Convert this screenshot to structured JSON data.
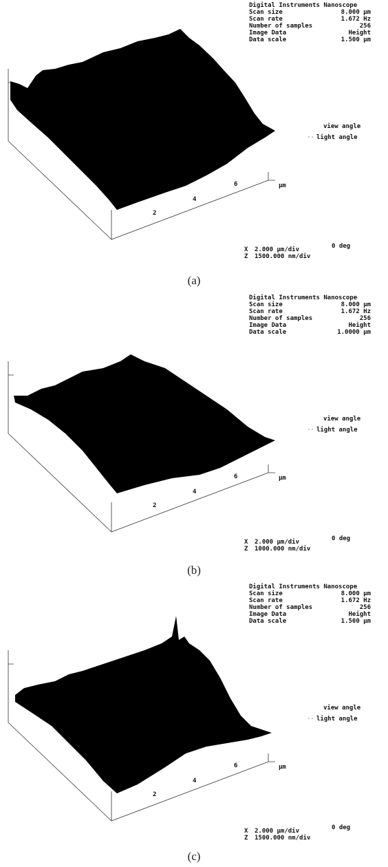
{
  "figure": {
    "panels": [
      {
        "header": {
          "title": "Digital Instruments Nanoscope",
          "rows": [
            [
              "Scan size",
              "8.000 µm"
            ],
            [
              "Scan rate",
              "1.672 Hz"
            ],
            [
              "Number of samples",
              "256"
            ],
            [
              "Image Data",
              "Height"
            ],
            [
              "Data scale",
              "1.500 µm"
            ]
          ]
        },
        "view_angle": "view angle",
        "light_angle": "light angle",
        "axis_ticks": [
          "2",
          "4",
          "6"
        ],
        "axis_unit": "µm",
        "footer": {
          "x_label": "X",
          "x_scale": "2.000 µm/div",
          "z_label": "Z",
          "z_scale": "1500.000 nm/div",
          "angle": "0 deg"
        },
        "caption": "(a)"
      },
      {
        "header": {
          "title": "Digital Instruments Nanoscope",
          "rows": [
            [
              "Scan size",
              "8.000 µm"
            ],
            [
              "Scan rate",
              "1.672 Hz"
            ],
            [
              "Number of samples",
              "256"
            ],
            [
              "Image Data",
              "Height"
            ],
            [
              "Data scale",
              "1.0000 µm"
            ]
          ]
        },
        "view_angle": "view angle",
        "light_angle": "light angle",
        "axis_ticks": [
          "2",
          "4",
          "6"
        ],
        "axis_unit": "µm",
        "footer": {
          "x_label": "X",
          "x_scale": "2.000 µm/div",
          "z_label": "Z",
          "z_scale": "1000.000 nm/div",
          "angle": "0 deg"
        },
        "caption": "(b)"
      },
      {
        "header": {
          "title": "Digital Instruments Nanoscope",
          "rows": [
            [
              "Scan size",
              "8.000 µm"
            ],
            [
              "Scan rate",
              "1.672 Hz"
            ],
            [
              "Number of samples",
              "256"
            ],
            [
              "Image Data",
              "Height"
            ],
            [
              "Data scale",
              "1.500 µm"
            ]
          ]
        },
        "view_angle": "view angle",
        "light_angle": "light angle",
        "axis_ticks": [
          "2",
          "4",
          "6"
        ],
        "axis_unit": "µm",
        "footer": {
          "x_label": "X",
          "x_scale": "2.000 µm/div",
          "z_label": "Z",
          "z_scale": "1500.000 nm/div",
          "angle": "0 deg"
        },
        "caption": "(c)"
      }
    ]
  }
}
